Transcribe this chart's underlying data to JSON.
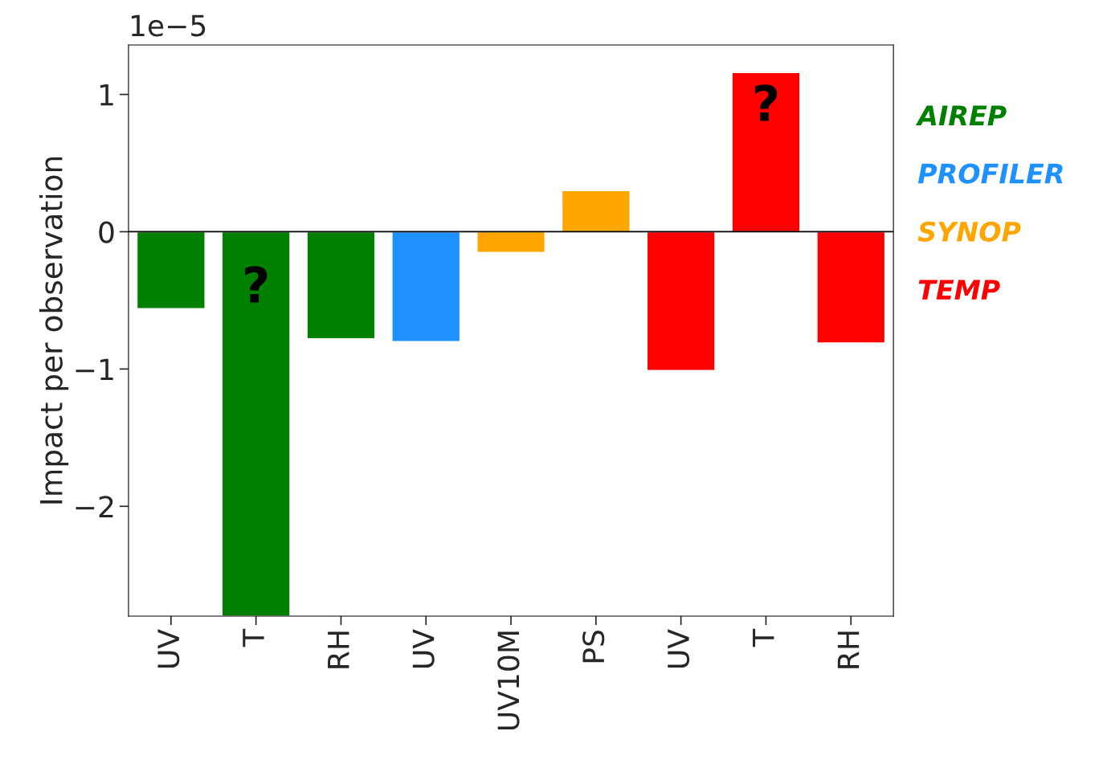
{
  "chart_data": {
    "type": "bar",
    "ylabel": "Impact per observation",
    "categories": [
      "UV",
      "T",
      "RH",
      "UV",
      "UV10M",
      "PS",
      "UV",
      "T",
      "RH"
    ],
    "series": [
      {
        "name": "AIREP",
        "color": "#008000",
        "values": [
          -0.56,
          -2.8,
          -0.78,
          null,
          null,
          null,
          null,
          null,
          null
        ]
      },
      {
        "name": "PROFILER",
        "color": "#1e90ff",
        "values": [
          null,
          null,
          null,
          -0.8,
          null,
          null,
          null,
          null,
          null
        ]
      },
      {
        "name": "SYNOP",
        "color": "#ffa500",
        "values": [
          null,
          null,
          null,
          null,
          -0.15,
          0.3,
          null,
          null,
          null
        ]
      },
      {
        "name": "TEMP",
        "color": "#ff0000",
        "values": [
          null,
          null,
          null,
          null,
          null,
          null,
          -1.01,
          1.16,
          -0.81
        ]
      }
    ],
    "ylim": [
      -2.8,
      1.36
    ],
    "yticks": [
      {
        "value": -2,
        "label": "−2"
      },
      {
        "value": -1,
        "label": "−1"
      },
      0,
      1
    ],
    "ref_lines": [
      {
        "axis": "y",
        "value": 0,
        "color": "#000000"
      }
    ],
    "annotations": [
      "1e−5",
      "?",
      "?"
    ],
    "legend": "right",
    "grid": false
  }
}
